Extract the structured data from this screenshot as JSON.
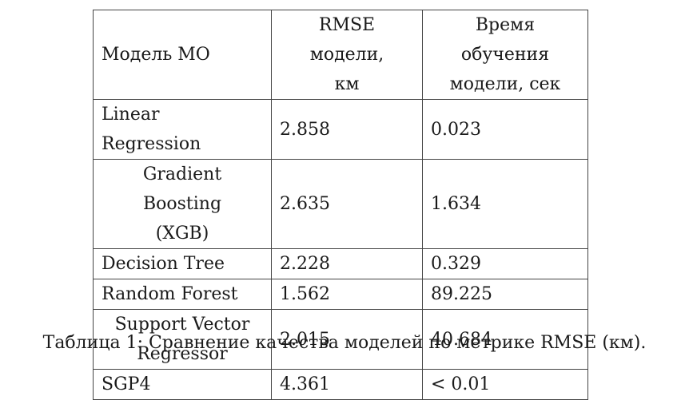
{
  "table": {
    "headers": {
      "model": "Модель МО",
      "rmse_line1": "RMSE модели,",
      "rmse_line2": "км",
      "time_line1": "Время обучения",
      "time_line2": "модели, сек"
    },
    "rows": [
      {
        "model_line1": "Linear Regression",
        "model_line2": "",
        "rmse": "2.858",
        "time": "0.023"
      },
      {
        "model_line1": "Gradient Boosting",
        "model_line2": "(XGB)",
        "rmse": "2.635",
        "time": "1.634"
      },
      {
        "model_line1": "Decision Tree",
        "model_line2": "",
        "rmse": "2.228",
        "time": "0.329"
      },
      {
        "model_line1": "Random Forest",
        "model_line2": "",
        "rmse": "1.562",
        "time": "89.225"
      },
      {
        "model_line1": "Support Vector",
        "model_line2": "Regressor",
        "rmse": "2.015",
        "time": "40.684"
      },
      {
        "model_line1": "SGP4",
        "model_line2": "",
        "rmse": "4.361",
        "time": "< 0.01"
      }
    ]
  },
  "caption": "Таблица 1: Сравнение качества моделей по метрике RMSE (км)."
}
